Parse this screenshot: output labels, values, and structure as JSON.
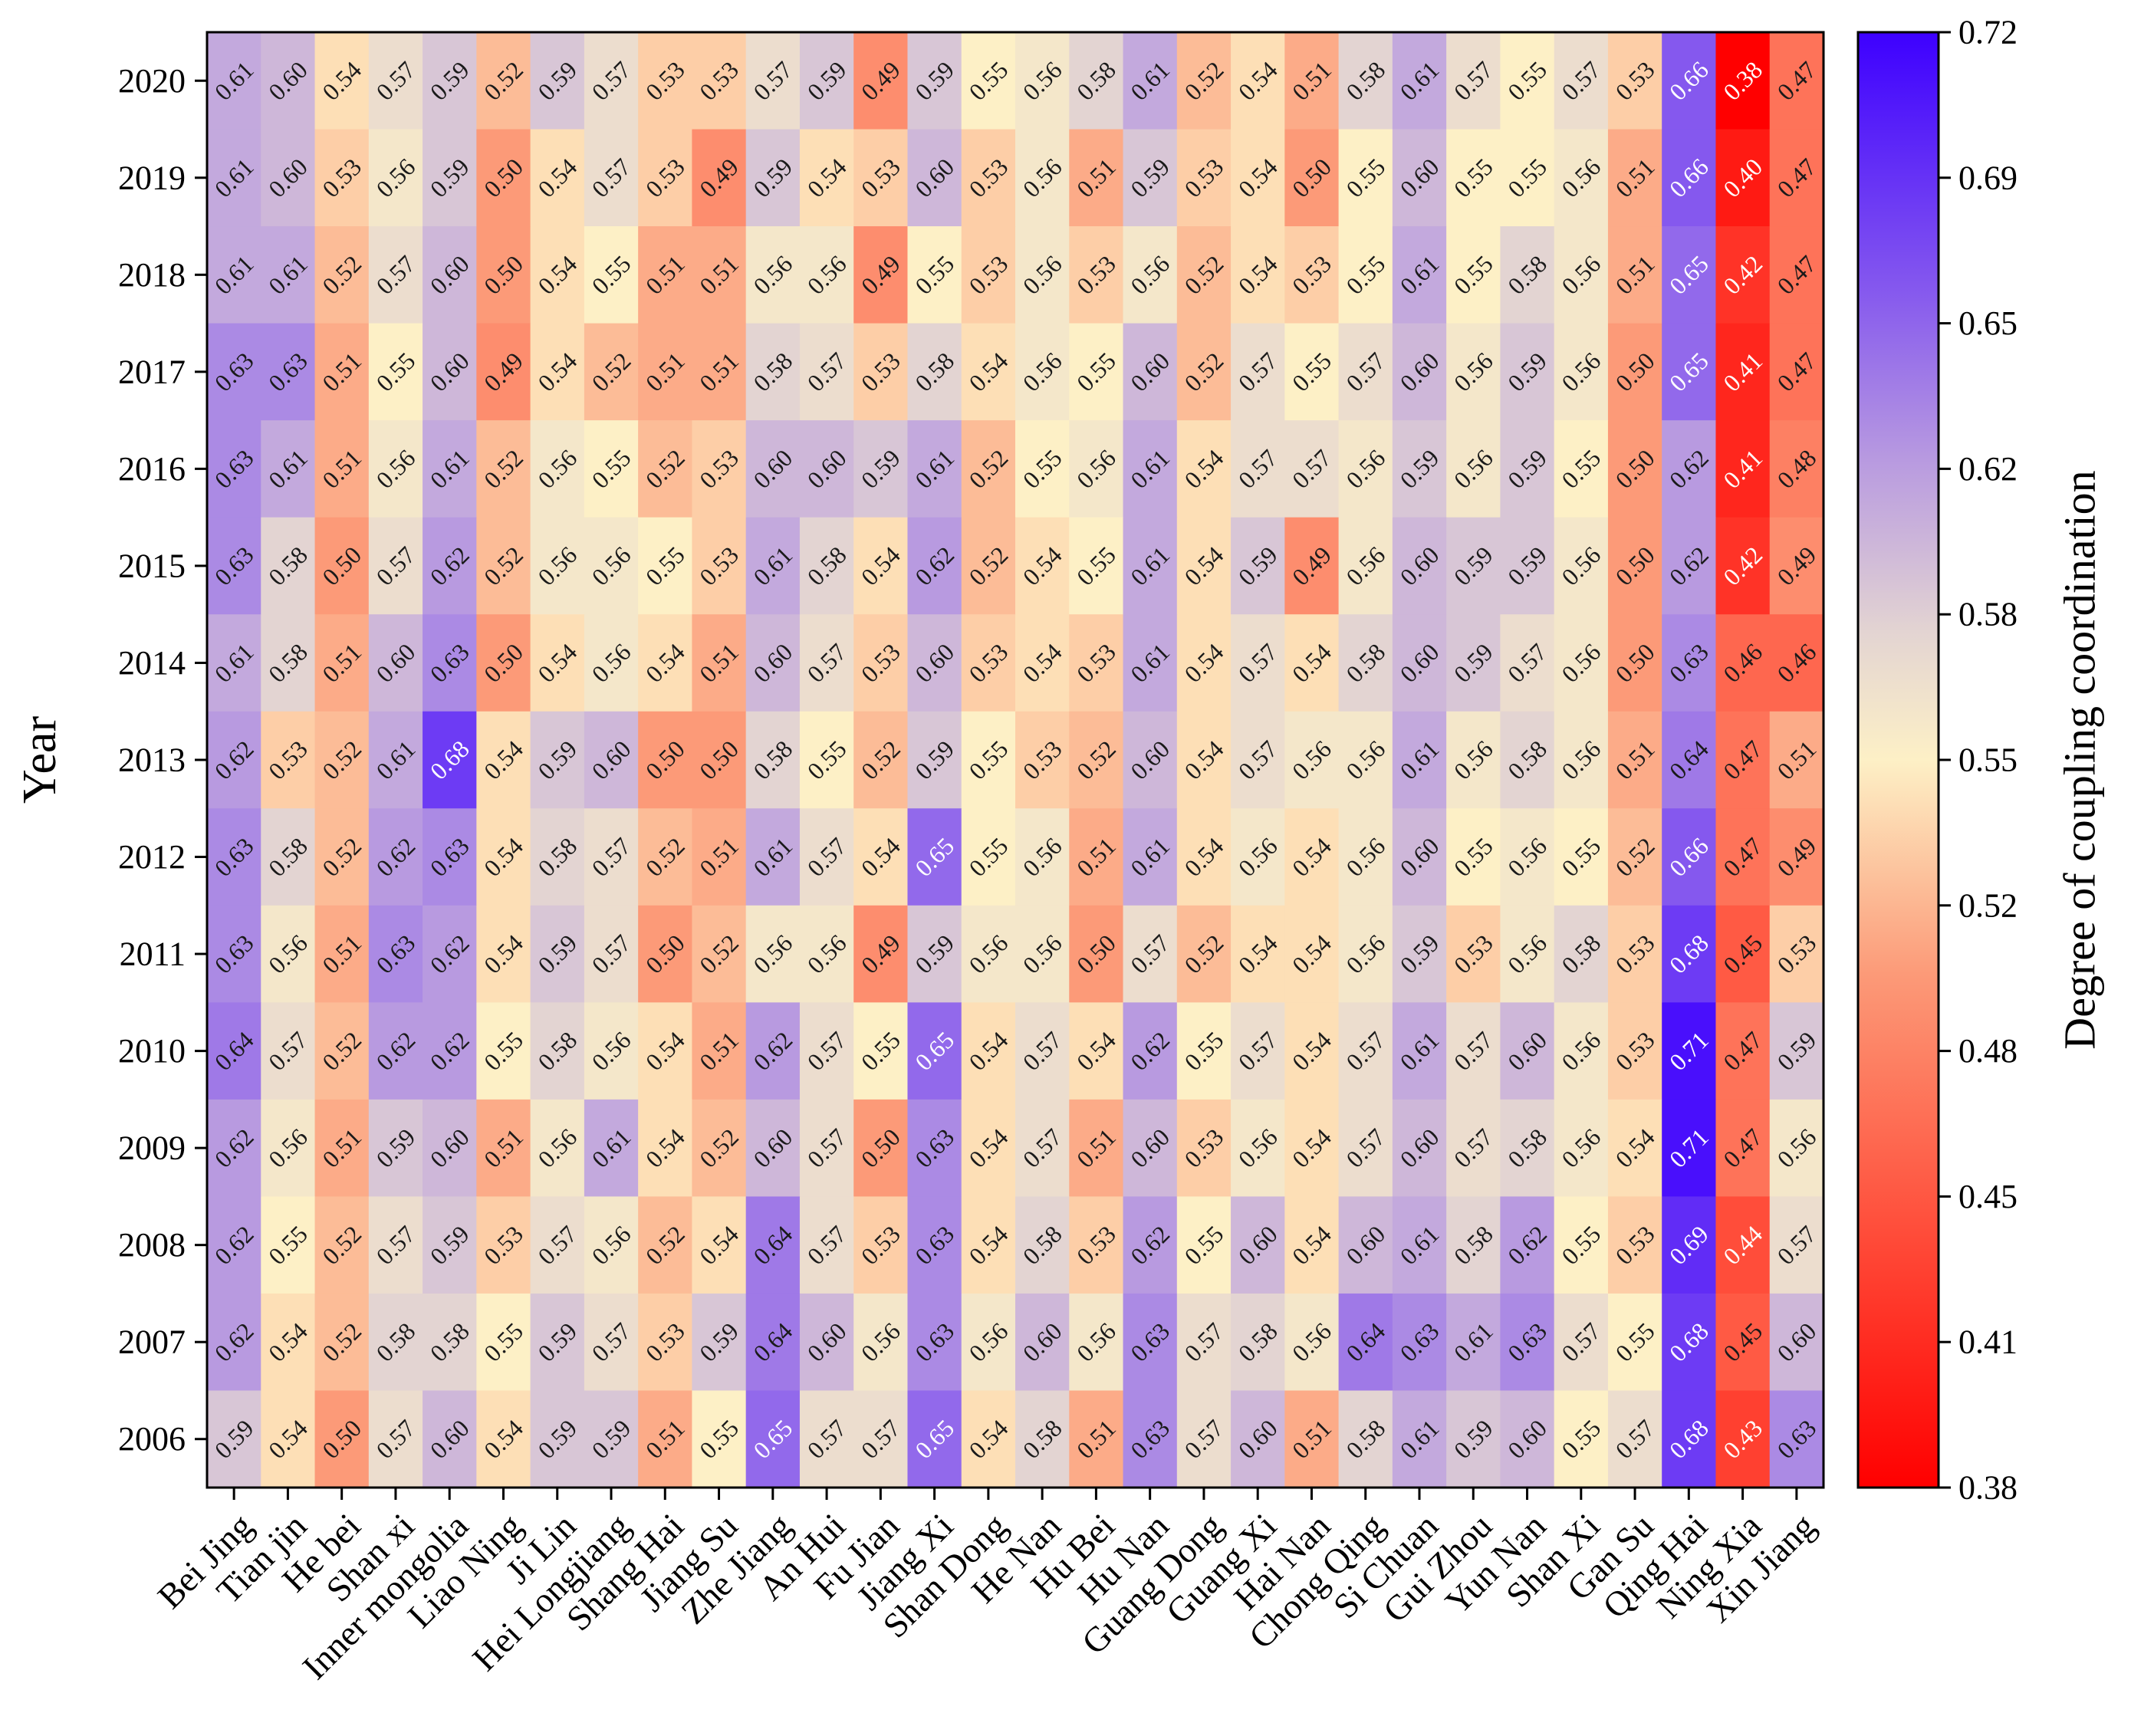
{
  "chart_data": {
    "type": "heatmap",
    "title": "",
    "xlabel": "",
    "ylabel": "Year",
    "colorbar_label": "Degree of coupling coordination",
    "colorbar_range": [
      0.38,
      0.72
    ],
    "colorbar_ticks": [
      "0.72",
      "0.69",
      "0.65",
      "0.62",
      "0.58",
      "0.55",
      "0.52",
      "0.48",
      "0.45",
      "0.41",
      "0.38"
    ],
    "colormap": [
      {
        "v": 0.38,
        "color": "#ff0000"
      },
      {
        "v": 0.44,
        "color": "#ff4d3a"
      },
      {
        "v": 0.5,
        "color": "#fc9a78"
      },
      {
        "v": 0.55,
        "color": "#fdf0c6"
      },
      {
        "v": 0.58,
        "color": "#e3d4d2"
      },
      {
        "v": 0.62,
        "color": "#b89ae0"
      },
      {
        "v": 0.66,
        "color": "#8558ee"
      },
      {
        "v": 0.72,
        "color": "#3d00ff"
      }
    ],
    "text_color_dark": "#1a1a1a",
    "text_color_light": "#ffffff",
    "x_categories": [
      "Bei Jing",
      "Tian jin",
      "He bei",
      "Shan xi",
      "Inner mongolia",
      "Liao Ning",
      "Ji Lin",
      "Hei Longjiang",
      "Shang Hai",
      "Jiang Su",
      "Zhe Jiang",
      "An Hui",
      "Fu Jian",
      "Jiang Xi",
      "Shan Dong",
      "He Nan",
      "Hu Bei",
      "Hu Nan",
      "Guang Dong",
      "Guang Xi",
      "Hai Nan",
      "Chong Qing",
      "Si Chuan",
      "Gui Zhou",
      "Yun Nan",
      "Shan Xi",
      "Gan Su",
      "Qing Hai",
      "Ning Xia",
      "Xin Jiang"
    ],
    "y_categories": [
      "2020",
      "2019",
      "2018",
      "2017",
      "2016",
      "2015",
      "2014",
      "2013",
      "2012",
      "2011",
      "2010",
      "2009",
      "2008",
      "2007",
      "2006"
    ],
    "values": [
      [
        "0.61",
        "0.60",
        "0.54",
        "0.57",
        "0.59",
        "0.52",
        "0.59",
        "0.57",
        "0.53",
        "0.53",
        "0.57",
        "0.59",
        "0.49",
        "0.59",
        "0.55",
        "0.56",
        "0.58",
        "0.61",
        "0.52",
        "0.54",
        "0.51",
        "0.58",
        "0.61",
        "0.57",
        "0.55",
        "0.57",
        "0.53",
        "0.66",
        "0.38",
        "0.47"
      ],
      [
        "0.61",
        "0.60",
        "0.53",
        "0.56",
        "0.59",
        "0.50",
        "0.54",
        "0.57",
        "0.53",
        "0.49",
        "0.59",
        "0.54",
        "0.53",
        "0.60",
        "0.53",
        "0.56",
        "0.51",
        "0.59",
        "0.53",
        "0.54",
        "0.50",
        "0.55",
        "0.60",
        "0.55",
        "0.55",
        "0.56",
        "0.51",
        "0.66",
        "0.40",
        "0.47"
      ],
      [
        "0.61",
        "0.61",
        "0.52",
        "0.57",
        "0.60",
        "0.50",
        "0.54",
        "0.55",
        "0.51",
        "0.51",
        "0.56",
        "0.56",
        "0.49",
        "0.55",
        "0.53",
        "0.56",
        "0.53",
        "0.56",
        "0.52",
        "0.54",
        "0.53",
        "0.55",
        "0.61",
        "0.55",
        "0.58",
        "0.56",
        "0.51",
        "0.65",
        "0.42",
        "0.47"
      ],
      [
        "0.63",
        "0.63",
        "0.51",
        "0.55",
        "0.60",
        "0.49",
        "0.54",
        "0.52",
        "0.51",
        "0.51",
        "0.58",
        "0.57",
        "0.53",
        "0.58",
        "0.54",
        "0.56",
        "0.55",
        "0.60",
        "0.52",
        "0.57",
        "0.55",
        "0.57",
        "0.60",
        "0.56",
        "0.59",
        "0.56",
        "0.50",
        "0.65",
        "0.41",
        "0.47"
      ],
      [
        "0.63",
        "0.61",
        "0.51",
        "0.56",
        "0.61",
        "0.52",
        "0.56",
        "0.55",
        "0.52",
        "0.53",
        "0.60",
        "0.60",
        "0.59",
        "0.61",
        "0.52",
        "0.55",
        "0.56",
        "0.61",
        "0.54",
        "0.57",
        "0.57",
        "0.56",
        "0.59",
        "0.56",
        "0.59",
        "0.55",
        "0.50",
        "0.62",
        "0.41",
        "0.48"
      ],
      [
        "0.63",
        "0.58",
        "0.50",
        "0.57",
        "0.62",
        "0.52",
        "0.56",
        "0.56",
        "0.55",
        "0.53",
        "0.61",
        "0.58",
        "0.54",
        "0.62",
        "0.52",
        "0.54",
        "0.55",
        "0.61",
        "0.54",
        "0.59",
        "0.49",
        "0.56",
        "0.60",
        "0.59",
        "0.59",
        "0.56",
        "0.50",
        "0.62",
        "0.42",
        "0.49"
      ],
      [
        "0.61",
        "0.58",
        "0.51",
        "0.60",
        "0.63",
        "0.50",
        "0.54",
        "0.56",
        "0.54",
        "0.51",
        "0.60",
        "0.57",
        "0.53",
        "0.60",
        "0.53",
        "0.54",
        "0.53",
        "0.61",
        "0.54",
        "0.57",
        "0.54",
        "0.58",
        "0.60",
        "0.59",
        "0.57",
        "0.56",
        "0.50",
        "0.63",
        "0.46",
        "0.46"
      ],
      [
        "0.62",
        "0.53",
        "0.52",
        "0.61",
        "0.68",
        "0.54",
        "0.59",
        "0.60",
        "0.50",
        "0.50",
        "0.58",
        "0.55",
        "0.52",
        "0.59",
        "0.55",
        "0.53",
        "0.52",
        "0.60",
        "0.54",
        "0.57",
        "0.56",
        "0.56",
        "0.61",
        "0.56",
        "0.58",
        "0.56",
        "0.51",
        "0.64",
        "0.47",
        "0.51"
      ],
      [
        "0.63",
        "0.58",
        "0.52",
        "0.62",
        "0.63",
        "0.54",
        "0.58",
        "0.57",
        "0.52",
        "0.51",
        "0.61",
        "0.57",
        "0.54",
        "0.65",
        "0.55",
        "0.56",
        "0.51",
        "0.61",
        "0.54",
        "0.56",
        "0.54",
        "0.56",
        "0.60",
        "0.55",
        "0.56",
        "0.55",
        "0.52",
        "0.66",
        "0.47",
        "0.49"
      ],
      [
        "0.63",
        "0.56",
        "0.51",
        "0.63",
        "0.62",
        "0.54",
        "0.59",
        "0.57",
        "0.50",
        "0.52",
        "0.56",
        "0.56",
        "0.49",
        "0.59",
        "0.56",
        "0.56",
        "0.50",
        "0.57",
        "0.52",
        "0.54",
        "0.54",
        "0.56",
        "0.59",
        "0.53",
        "0.56",
        "0.58",
        "0.53",
        "0.68",
        "0.45",
        "0.53"
      ],
      [
        "0.64",
        "0.57",
        "0.52",
        "0.62",
        "0.62",
        "0.55",
        "0.58",
        "0.56",
        "0.54",
        "0.51",
        "0.62",
        "0.57",
        "0.55",
        "0.65",
        "0.54",
        "0.57",
        "0.54",
        "0.62",
        "0.55",
        "0.57",
        "0.54",
        "0.57",
        "0.61",
        "0.57",
        "0.60",
        "0.56",
        "0.53",
        "0.71",
        "0.47",
        "0.59"
      ],
      [
        "0.62",
        "0.56",
        "0.51",
        "0.59",
        "0.60",
        "0.51",
        "0.56",
        "0.61",
        "0.54",
        "0.52",
        "0.60",
        "0.57",
        "0.50",
        "0.63",
        "0.54",
        "0.57",
        "0.51",
        "0.60",
        "0.53",
        "0.56",
        "0.54",
        "0.57",
        "0.60",
        "0.57",
        "0.58",
        "0.56",
        "0.54",
        "0.71",
        "0.47",
        "0.56"
      ],
      [
        "0.62",
        "0.55",
        "0.52",
        "0.57",
        "0.59",
        "0.53",
        "0.57",
        "0.56",
        "0.52",
        "0.54",
        "0.64",
        "0.57",
        "0.53",
        "0.63",
        "0.54",
        "0.58",
        "0.53",
        "0.62",
        "0.55",
        "0.60",
        "0.54",
        "0.60",
        "0.61",
        "0.58",
        "0.62",
        "0.55",
        "0.53",
        "0.69",
        "0.44",
        "0.57"
      ],
      [
        "0.62",
        "0.54",
        "0.52",
        "0.58",
        "0.58",
        "0.55",
        "0.59",
        "0.57",
        "0.53",
        "0.59",
        "0.64",
        "0.60",
        "0.56",
        "0.63",
        "0.56",
        "0.60",
        "0.56",
        "0.63",
        "0.57",
        "0.58",
        "0.56",
        "0.64",
        "0.63",
        "0.61",
        "0.63",
        "0.57",
        "0.55",
        "0.68",
        "0.45",
        "0.60"
      ],
      [
        "0.59",
        "0.54",
        "0.50",
        "0.57",
        "0.60",
        "0.54",
        "0.59",
        "0.59",
        "0.51",
        "0.55",
        "0.65",
        "0.57",
        "0.57",
        "0.65",
        "0.54",
        "0.58",
        "0.51",
        "0.63",
        "0.57",
        "0.60",
        "0.51",
        "0.58",
        "0.61",
        "0.59",
        "0.60",
        "0.55",
        "0.57",
        "0.68",
        "0.43",
        "0.63"
      ]
    ]
  }
}
